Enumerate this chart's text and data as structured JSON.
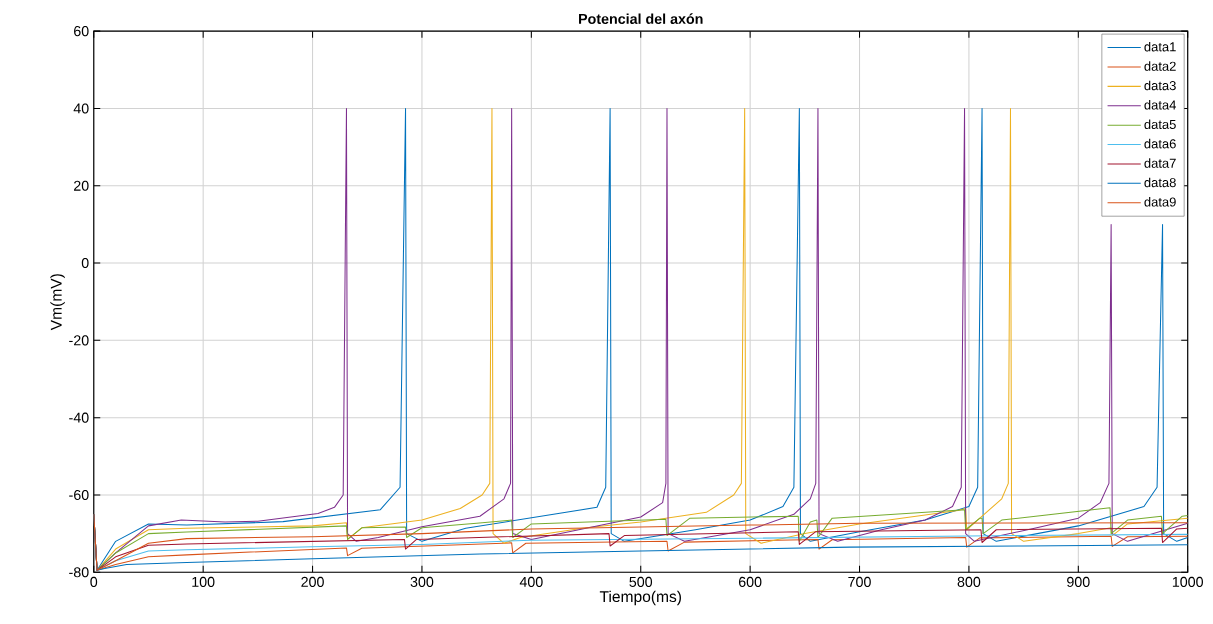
{
  "chart_data": {
    "type": "line",
    "title": "Potencial del axón",
    "xlabel": "Tiempo(ms)",
    "ylabel": "Vm(mV)",
    "xlim": [
      0,
      1000
    ],
    "ylim": [
      -80,
      60
    ],
    "xticks": [
      0,
      100,
      200,
      300,
      400,
      500,
      600,
      700,
      800,
      900,
      1000
    ],
    "yticks": [
      -80,
      -60,
      -40,
      -20,
      0,
      20,
      40,
      60
    ],
    "grid": true,
    "legend": "top right",
    "series": [
      {
        "name": "data1",
        "color": "#0072bd",
        "x": [
          0,
          3,
          20,
          50,
          85,
          173,
          262,
          280,
          285,
          286,
          300,
          340,
          460,
          468,
          472,
          473,
          485,
          550,
          600,
          630,
          640,
          645,
          646,
          655,
          700,
          760,
          800,
          808,
          812,
          813,
          825,
          900,
          960,
          972,
          977,
          978,
          990,
          1000
        ],
        "values": [
          -65,
          -79.5,
          -72,
          -67.5,
          -67.8,
          -66.9,
          -63.8,
          -58,
          40,
          -70,
          -72,
          -68.6,
          -63.2,
          -58,
          40,
          -70,
          -72,
          -69,
          -66.5,
          -63,
          -58,
          40,
          -70,
          -72,
          -69.5,
          -66.5,
          -63,
          -58,
          40,
          -70,
          -72,
          -68,
          -63,
          -58,
          10,
          -70,
          -72,
          -71
        ]
      },
      {
        "name": "data2",
        "color": "#d95319",
        "x": [
          0,
          3,
          20,
          50,
          85,
          231,
          232,
          245,
          382,
          383,
          395,
          524,
          525,
          540,
          662,
          663,
          675,
          797,
          798,
          810,
          930,
          931,
          945,
          1000
        ],
        "values": [
          -65,
          -79.5,
          -78,
          -76,
          -75.5,
          -73.7,
          -75.7,
          -73.8,
          -72.4,
          -75,
          -72.5,
          -72,
          -74.5,
          -72.2,
          -71.5,
          -74,
          -71.6,
          -71,
          -73.5,
          -71.1,
          -70.7,
          -73.3,
          -70.8,
          -70.7
        ]
      },
      {
        "name": "data3",
        "color": "#edb120",
        "x": [
          0,
          3,
          20,
          50,
          85,
          200,
          231,
          232,
          245,
          300,
          335,
          355,
          362,
          364,
          365,
          375,
          390,
          450,
          500,
          560,
          585,
          592,
          595,
          596,
          610,
          650,
          700,
          790,
          797,
          798,
          810,
          830,
          836,
          838,
          839,
          850,
          900,
          930,
          931,
          945,
          1000
        ],
        "values": [
          -65,
          -79.5,
          -74,
          -69,
          -68.6,
          -68,
          -67.2,
          -71.5,
          -68.5,
          -66.5,
          -63.5,
          -60,
          -57,
          40,
          -70,
          -72.5,
          -71,
          -68.5,
          -67,
          -64.5,
          -60,
          -57,
          40,
          -70,
          -72.5,
          -70,
          -67.5,
          -64,
          -63.5,
          -69,
          -66,
          -61,
          -57,
          40,
          -70,
          -72,
          -70,
          -68.5,
          -70.5,
          -67.5,
          -66
        ]
      },
      {
        "name": "data4",
        "color": "#7e2f8e",
        "x": [
          0,
          3,
          20,
          50,
          80,
          120,
          150,
          205,
          220,
          228,
          231,
          232,
          240,
          260,
          300,
          353,
          375,
          381,
          382,
          383,
          400,
          450,
          500,
          520,
          523,
          524,
          525,
          540,
          600,
          640,
          655,
          660,
          662,
          663,
          680,
          720,
          760,
          785,
          793,
          796,
          797,
          805,
          860,
          900,
          920,
          928,
          930,
          931,
          945,
          1000
        ],
        "values": [
          -65,
          -79.5,
          -75,
          -68,
          -66.5,
          -67,
          -66.8,
          -64.8,
          -63.2,
          -60,
          40,
          -70,
          -72,
          -71,
          -68.2,
          -65.5,
          -61,
          -57,
          40,
          -70,
          -71.5,
          -68.6,
          -65.7,
          -62,
          -57,
          40,
          -70,
          -72,
          -69,
          -65,
          -61,
          -57,
          40,
          -70,
          -72,
          -69,
          -66.5,
          -63,
          -58,
          40,
          -70,
          -72,
          -68.6,
          -66,
          -62,
          -57,
          10,
          -70,
          -72,
          -67.3
        ]
      },
      {
        "name": "data5",
        "color": "#77ac30",
        "x": [
          0,
          3,
          20,
          50,
          85,
          231,
          232,
          245,
          285,
          286,
          300,
          350,
          382,
          383,
          400,
          523,
          524,
          545,
          644,
          645,
          655,
          661,
          662,
          675,
          796,
          797,
          810,
          812,
          813,
          830,
          929,
          930,
          945,
          976,
          977,
          995,
          1000
        ],
        "values": [
          -65,
          -79.5,
          -75,
          -70,
          -69.6,
          -68,
          -71.5,
          -68.5,
          -68.3,
          -71,
          -68.5,
          -67.3,
          -66.5,
          -71,
          -67.5,
          -66.3,
          -70.5,
          -66,
          -65.5,
          -72,
          -67,
          -66.5,
          -71,
          -66,
          -63.8,
          -69,
          -66,
          -66,
          -70,
          -66.5,
          -63.3,
          -70,
          -66.5,
          -65.5,
          -70,
          -65.5,
          -65.3
        ]
      },
      {
        "name": "data6",
        "color": "#4dbeee",
        "x": [
          0,
          3,
          20,
          50,
          85,
          200,
          300,
          400,
          600,
          800,
          1000
        ],
        "values": [
          -65,
          -79.5,
          -77,
          -74.5,
          -74.2,
          -73.4,
          -72.8,
          -71.7,
          -71.2,
          -70.6,
          -70.2
        ]
      },
      {
        "name": "data7",
        "color": "#a2142f",
        "x": [
          0,
          3,
          20,
          50,
          85,
          284,
          285,
          295,
          471,
          472,
          485,
          644,
          645,
          660,
          811,
          812,
          825,
          976,
          977,
          990,
          1000
        ],
        "values": [
          -65,
          -79.5,
          -76,
          -73,
          -72.7,
          -71.5,
          -74,
          -71.5,
          -70,
          -73.2,
          -70.5,
          -69.5,
          -72.8,
          -69.5,
          -69,
          -72.3,
          -69,
          -68.6,
          -72.3,
          -68.8,
          -68.6
        ]
      },
      {
        "name": "data8",
        "color": "#0072bd",
        "x": [
          0,
          3,
          10,
          30,
          85,
          200,
          353,
          500,
          691,
          850,
          1000
        ],
        "values": [
          -65,
          -79.5,
          -79,
          -78,
          -77.5,
          -76.5,
          -75.3,
          -74.5,
          -73.5,
          -73.2,
          -72.9
        ]
      },
      {
        "name": "data9",
        "color": "#d95319",
        "x": [
          0,
          3,
          20,
          50,
          85,
          200,
          300,
          400,
          600,
          700,
          1000
        ],
        "values": [
          -65,
          -79.5,
          -77,
          -72.5,
          -71.3,
          -70.8,
          -70,
          -68.8,
          -67.8,
          -67.3,
          -67.2
        ]
      }
    ]
  }
}
